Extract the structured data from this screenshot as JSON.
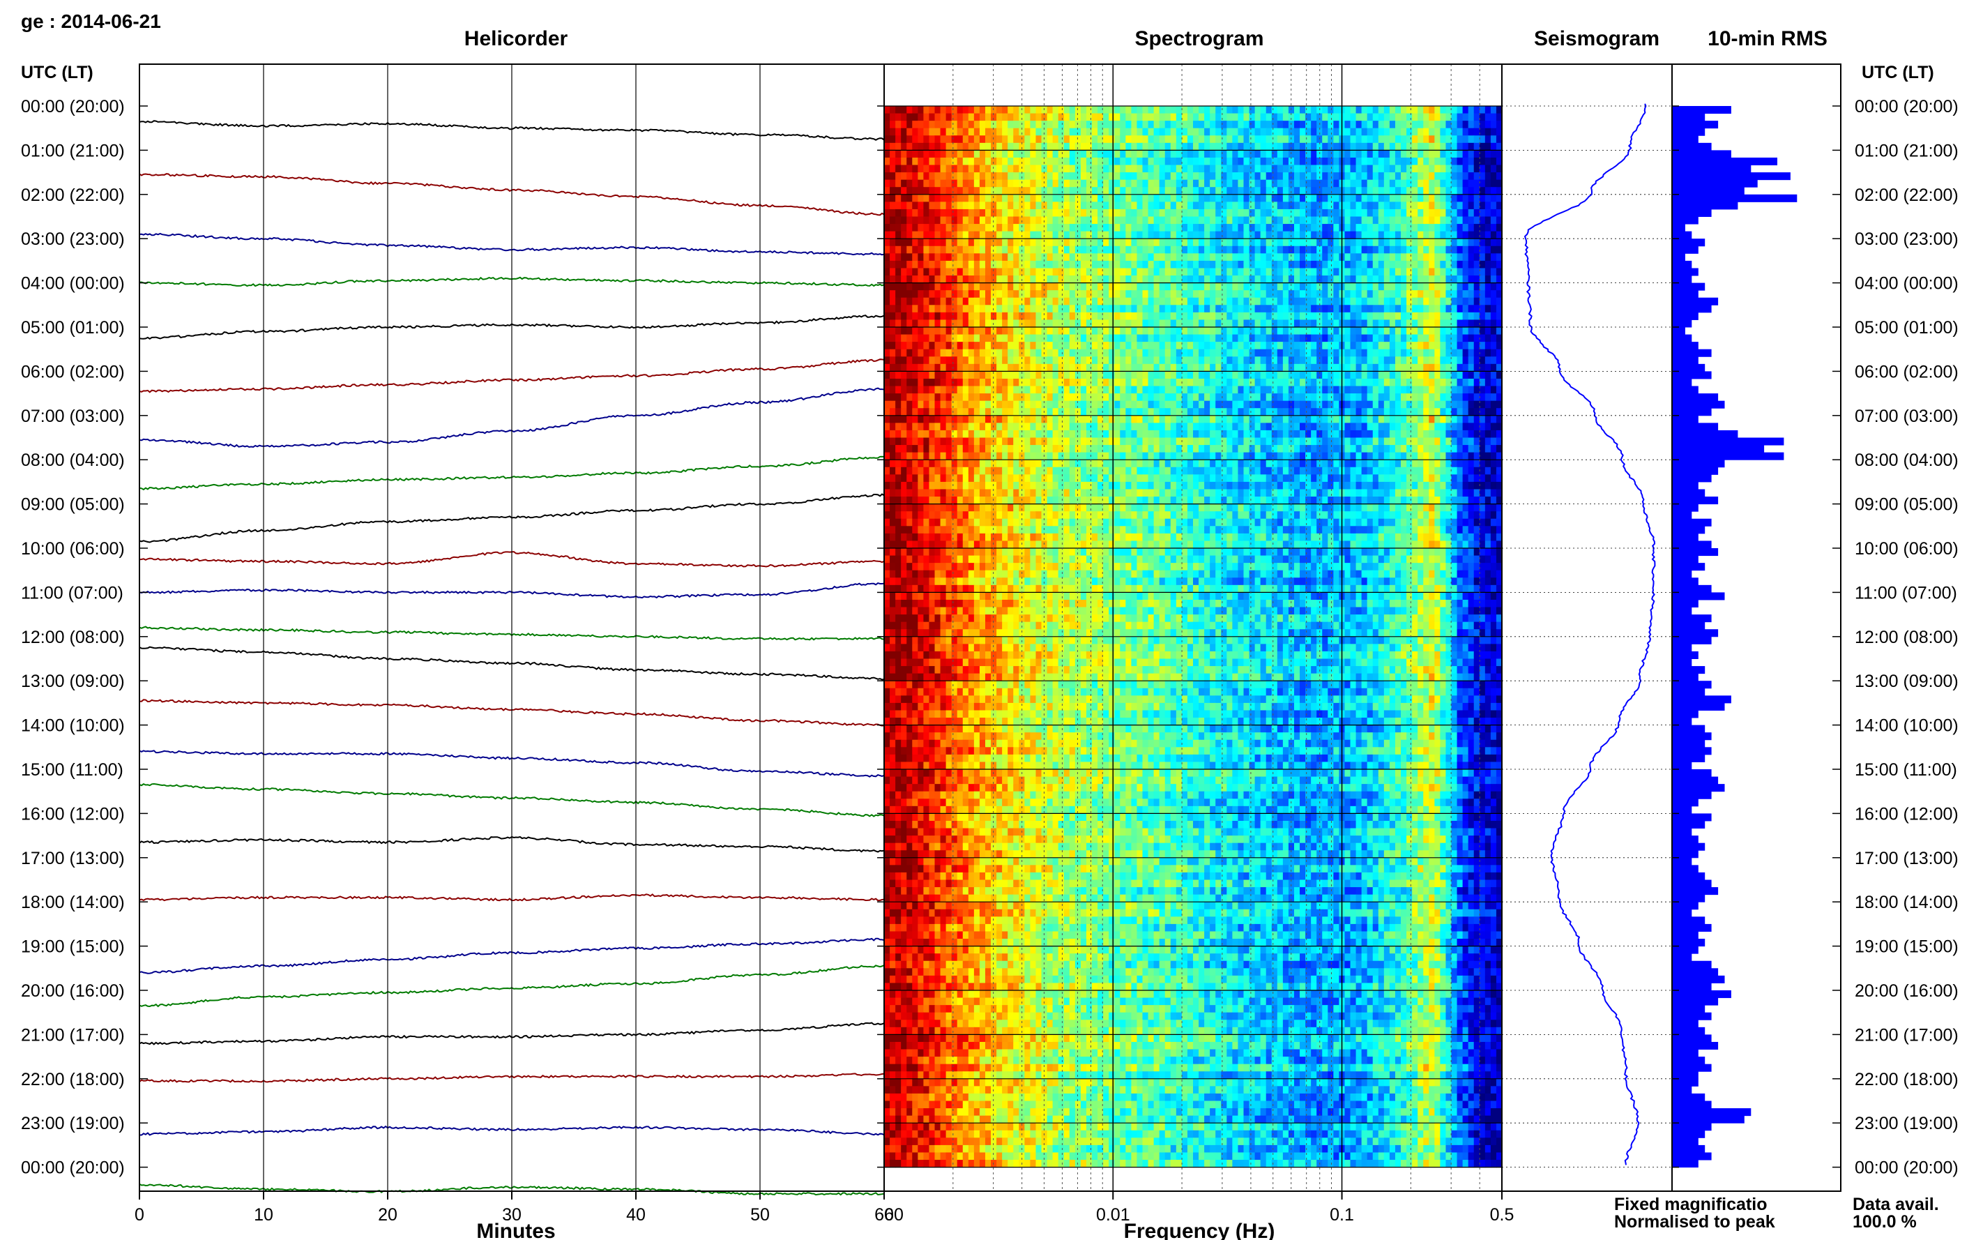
{
  "header": {
    "station_date": "ge : 2014-06-21",
    "left_axis_title": "UTC (LT)",
    "right_axis_title": "UTC (LT)"
  },
  "panels": {
    "helicorder": "Helicorder",
    "spectrogram": "Spectrogram",
    "seismogram": "Seismogram",
    "rms": "10-min RMS"
  },
  "footer": {
    "minutes_label": "Minutes",
    "frequency_label": "Frequency (Hz)",
    "legend_fixed": "Fixed magnificatio",
    "legend_normalised": "Normalised to peak",
    "data_avail_label": "Data avail.",
    "data_avail_value": "100.0 %"
  },
  "colors": {
    "trace_cycle": [
      "#000000",
      "#8b0000",
      "#00008b",
      "#007a00"
    ],
    "seismogram_line": "#0000ff",
    "rms_bars": "#0000ff",
    "legend_fixed": "#0000ff",
    "legend_normalised": "#ff0000",
    "grid": "#000000"
  },
  "chart_data": [
    {
      "type": "line",
      "name": "helicorder",
      "title": "Helicorder",
      "xlabel": "Minutes",
      "xlim": [
        0,
        60
      ],
      "x_ticks": [
        "0",
        "10",
        "20",
        "30",
        "40",
        "50",
        "60"
      ],
      "rows": [
        "00:00 (20:00)",
        "01:00 (21:00)",
        "02:00 (22:00)",
        "03:00 (23:00)",
        "04:00 (00:00)",
        "05:00 (01:00)",
        "06:00 (02:00)",
        "07:00 (03:00)",
        "08:00 (04:00)",
        "09:00 (05:00)",
        "10:00 (06:00)",
        "11:00 (07:00)",
        "12:00 (08:00)",
        "13:00 (09:00)",
        "14:00 (10:00)",
        "15:00 (11:00)",
        "16:00 (12:00)",
        "17:00 (13:00)",
        "18:00 (14:00)",
        "19:00 (15:00)",
        "20:00 (16:00)",
        "21:00 (17:00)",
        "22:00 (18:00)",
        "23:00 (19:00)",
        "00:00 (20:00)"
      ],
      "trace_offsets_hours": [
        [
          -0.65,
          -0.55,
          -0.6,
          -0.5,
          -0.45,
          -0.35,
          -0.25
        ],
        [
          -0.45,
          -0.4,
          -0.25,
          -0.1,
          0.05,
          0.25,
          0.45
        ],
        [
          -0.1,
          0.0,
          0.15,
          0.25,
          0.2,
          0.3,
          0.35
        ],
        [
          0.0,
          0.05,
          -0.05,
          -0.1,
          -0.05,
          0.0,
          0.05
        ],
        [
          0.25,
          0.1,
          0.0,
          -0.05,
          0.0,
          -0.1,
          -0.25
        ],
        [
          0.45,
          0.4,
          0.3,
          0.2,
          0.1,
          -0.05,
          -0.25
        ],
        [
          0.55,
          0.7,
          0.6,
          0.35,
          0.0,
          -0.3,
          -0.6
        ],
        [
          0.65,
          0.55,
          0.45,
          0.4,
          0.3,
          0.15,
          -0.05
        ],
        [
          0.85,
          0.6,
          0.4,
          0.3,
          0.15,
          0.0,
          -0.2
        ],
        [
          0.25,
          0.3,
          0.35,
          0.1,
          0.35,
          0.4,
          0.3
        ],
        [
          0.0,
          -0.05,
          0.0,
          0.0,
          0.1,
          0.05,
          -0.2
        ],
        [
          -0.2,
          -0.15,
          -0.1,
          -0.05,
          0.0,
          0.05,
          0.05
        ],
        [
          -0.75,
          -0.65,
          -0.5,
          -0.4,
          -0.25,
          -0.15,
          -0.05
        ],
        [
          -0.55,
          -0.5,
          -0.45,
          -0.35,
          -0.25,
          -0.1,
          0.0
        ],
        [
          -0.4,
          -0.35,
          -0.35,
          -0.25,
          -0.15,
          0.05,
          0.15
        ],
        [
          -0.65,
          -0.55,
          -0.45,
          -0.35,
          -0.25,
          -0.1,
          0.05
        ],
        [
          -0.35,
          -0.4,
          -0.35,
          -0.45,
          -0.3,
          -0.25,
          -0.15
        ],
        [
          -0.05,
          -0.1,
          -0.1,
          -0.05,
          -0.15,
          -0.1,
          -0.05
        ],
        [
          0.6,
          0.45,
          0.3,
          0.15,
          0.05,
          -0.05,
          -0.15
        ],
        [
          0.35,
          0.15,
          0.05,
          -0.05,
          -0.15,
          -0.35,
          -0.55
        ],
        [
          0.2,
          0.15,
          0.05,
          0.05,
          0.0,
          -0.1,
          -0.25
        ],
        [
          0.05,
          0.05,
          0.0,
          -0.05,
          -0.05,
          -0.05,
          -0.1
        ],
        [
          0.25,
          0.2,
          0.1,
          0.15,
          0.1,
          0.15,
          0.25
        ],
        [
          0.4,
          0.5,
          0.55,
          0.45,
          0.5,
          0.6,
          0.6
        ]
      ]
    },
    {
      "type": "heatmap",
      "name": "spectrogram",
      "title": "Spectrogram",
      "xlabel": "Frequency (Hz)",
      "x_scale": "log",
      "xlim": [
        0.001,
        0.5
      ],
      "x_ticks": [
        "60",
        "0.01",
        "0.1",
        "0.5"
      ],
      "frequency_bands_hz": [
        0.0012,
        0.0018,
        0.0025,
        0.004,
        0.006,
        0.01,
        0.017,
        0.03,
        0.05,
        0.08,
        0.12,
        0.18,
        0.25,
        0.32,
        0.4,
        0.5
      ],
      "relative_power_by_band": [
        0.95,
        0.82,
        0.72,
        0.62,
        0.55,
        0.5,
        0.45,
        0.38,
        0.33,
        0.3,
        0.32,
        0.42,
        0.6,
        0.25,
        0.1,
        0.08
      ]
    },
    {
      "type": "line",
      "name": "seismogram",
      "title": "Seismogram",
      "normalisation": "Fixed magnification",
      "hours": [
        0,
        1,
        2,
        3,
        4,
        5,
        6,
        7,
        8,
        9,
        10,
        11,
        12,
        13,
        14,
        15,
        16,
        17,
        18,
        19,
        20,
        21,
        22,
        23,
        24
      ],
      "values": [
        0.75,
        0.55,
        0.05,
        -0.78,
        -0.75,
        -0.72,
        -0.35,
        0.1,
        0.45,
        0.72,
        0.85,
        0.85,
        0.8,
        0.68,
        0.4,
        0.05,
        -0.3,
        -0.45,
        -0.35,
        -0.1,
        0.2,
        0.45,
        0.5,
        0.65,
        0.5
      ]
    },
    {
      "type": "bar",
      "name": "10-min RMS",
      "title": "10-min RMS",
      "values": [
        0.45,
        0.25,
        0.35,
        0.25,
        0.2,
        0.3,
        0.45,
        0.8,
        0.6,
        0.9,
        0.65,
        0.55,
        0.95,
        0.5,
        0.3,
        0.2,
        0.1,
        0.15,
        0.25,
        0.2,
        0.1,
        0.15,
        0.2,
        0.15,
        0.25,
        0.2,
        0.35,
        0.3,
        0.2,
        0.15,
        0.1,
        0.15,
        0.2,
        0.3,
        0.2,
        0.25,
        0.3,
        0.15,
        0.2,
        0.35,
        0.4,
        0.3,
        0.2,
        0.35,
        0.5,
        0.85,
        0.7,
        0.85,
        0.4,
        0.35,
        0.3,
        0.2,
        0.25,
        0.35,
        0.2,
        0.15,
        0.3,
        0.25,
        0.2,
        0.3,
        0.35,
        0.2,
        0.25,
        0.15,
        0.2,
        0.3,
        0.4,
        0.2,
        0.15,
        0.3,
        0.25,
        0.35,
        0.3,
        0.15,
        0.2,
        0.15,
        0.25,
        0.2,
        0.3,
        0.25,
        0.45,
        0.4,
        0.2,
        0.15,
        0.25,
        0.3,
        0.25,
        0.3,
        0.25,
        0.15,
        0.3,
        0.35,
        0.4,
        0.3,
        0.2,
        0.15,
        0.3,
        0.25,
        0.15,
        0.2,
        0.25,
        0.2,
        0.15,
        0.2,
        0.25,
        0.3,
        0.35,
        0.25,
        0.2,
        0.15,
        0.25,
        0.3,
        0.2,
        0.25,
        0.2,
        0.15,
        0.3,
        0.35,
        0.4,
        0.3,
        0.45,
        0.35,
        0.25,
        0.3,
        0.2,
        0.25,
        0.3,
        0.35,
        0.2,
        0.25,
        0.3,
        0.2,
        0.2,
        0.15,
        0.25,
        0.3,
        0.6,
        0.55,
        0.3,
        0.25,
        0.2,
        0.25,
        0.3,
        0.2
      ]
    }
  ]
}
